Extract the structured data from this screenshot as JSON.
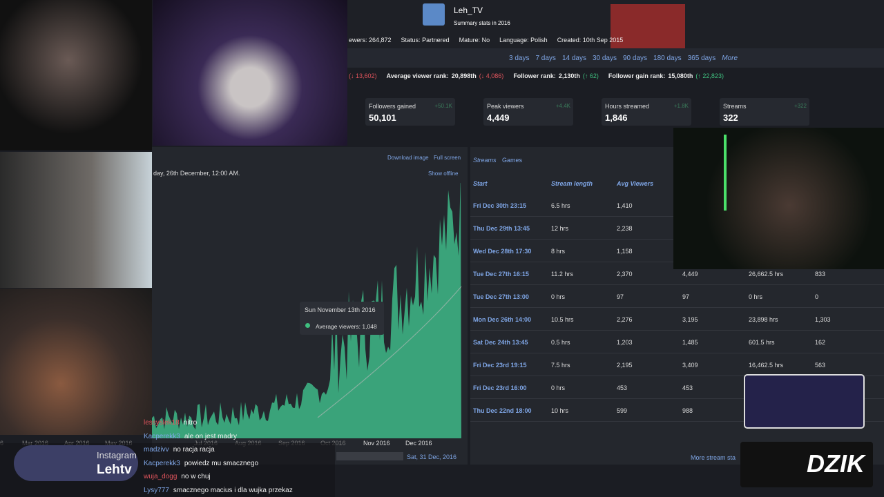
{
  "header": {
    "channel": "Leh_TV",
    "subtitle": "Summary stats in 2016",
    "stats": [
      "ewers: 264,872",
      "Status: Partnered",
      "Mature: No",
      "Language: Polish",
      "Created: 10th Sep 2015"
    ]
  },
  "periods": [
    "3 days",
    "7 days",
    "14 days",
    "30 days",
    "90 days",
    "180 days",
    "365 days",
    "More"
  ],
  "ranks": [
    {
      "label": "",
      "value": "(↓ 13,602)"
    },
    {
      "label": "Average viewer rank:",
      "value": "20,898th",
      "change": "(↓ 4,086)"
    },
    {
      "label": "Follower rank:",
      "value": "2,130th",
      "change": "(↑ 62)"
    },
    {
      "label": "Follower gain rank:",
      "value": "15,080th",
      "change": "(↑ 22,823)"
    }
  ],
  "cards": [
    {
      "label": "Followers gained",
      "value": "50,101",
      "delta": "+50.1K"
    },
    {
      "label": "Peak viewers",
      "value": "4,449",
      "delta": "+4.4K"
    },
    {
      "label": "Hours streamed",
      "value": "1,846",
      "delta": "+1.8K"
    },
    {
      "label": "Streams",
      "value": "322",
      "delta": "+322"
    }
  ],
  "chart": {
    "download": "Download image",
    "fullscreen": "Full screen",
    "range_text": "day, 26th December, 12:00 AM.",
    "show_offline": "Show offline",
    "tooltip_date": "Sun November 13th 2016",
    "tooltip_text": "Average viewers: 1,048",
    "x_labels": [
      "6",
      "Mar 2016",
      "Apr 2016",
      "May 2016",
      "Jul 2016",
      "Aug 2016",
      "Sep 2016",
      "Oct 2016",
      "Nov 2016",
      "Dec 2016"
    ],
    "navigator_date": "Sat, 31 Dec, 2016"
  },
  "table": {
    "tabs": [
      "Streams",
      "Games"
    ],
    "headers": [
      "Start",
      "Stream length",
      "Avg Viewers"
    ],
    "rows": [
      [
        "Fri Dec 30th 23:15",
        "6.5 hrs",
        "1,410"
      ],
      [
        "Thu Dec 29th 13:45",
        "12 hrs",
        "2,238"
      ],
      [
        "Wed Dec 28th 17:30",
        "8 hrs",
        "1,158"
      ],
      [
        "Tue Dec 27th 16:15",
        "11.2 hrs",
        "2,370",
        "4,449",
        "26,662.5 hrs",
        "833"
      ],
      [
        "Tue Dec 27th 13:00",
        "0 hrs",
        "97",
        "97",
        "0 hrs",
        "0"
      ],
      [
        "Mon Dec 26th 14:00",
        "10.5 hrs",
        "2,276",
        "3,195",
        "23,898 hrs",
        "1,303"
      ],
      [
        "Sat Dec 24th 13:45",
        "0.5 hrs",
        "1,203",
        "1,485",
        "601.5 hrs",
        "162"
      ],
      [
        "Fri Dec 23rd 19:15",
        "7.5 hrs",
        "2,195",
        "3,409",
        "16,462.5 hrs",
        "563"
      ],
      [
        "Fri Dec 23rd 16:00",
        "0 hrs",
        "453",
        "453"
      ],
      [
        "Thu Dec 22nd 18:00",
        "10 hrs",
        "599",
        "988"
      ]
    ],
    "more": "More stream sta"
  },
  "chat": [
    {
      "user": "lessyslek18",
      "text": "nitro"
    },
    {
      "user": "Kacperekk3",
      "text": "ale on jest madry"
    },
    {
      "user": "madzivv",
      "text": "no racja racja"
    },
    {
      "user": "Kacperekk3",
      "text": "powiedz mu smacznego"
    },
    {
      "user": "wuja_dogg",
      "text": "no w chuj"
    },
    {
      "user": "Lysy777",
      "text": "smacznego macius i dla wujka przekaz"
    }
  ],
  "overlay": {
    "instagram": "Instagram",
    "handle": "Lehtv",
    "sponsor": "DZIK"
  }
}
